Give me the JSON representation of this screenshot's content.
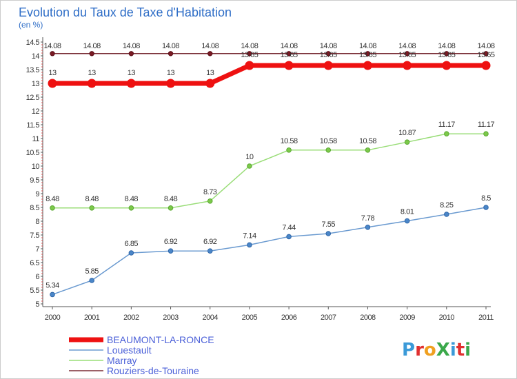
{
  "title": "Evolution du Taux de Taxe d'Habitation",
  "subtitle": "(en %)",
  "logo": {
    "text": "ProXiti",
    "colors": [
      "#3b9ad8",
      "#e03030",
      "#f0a020",
      "#3aa84a",
      "#3b9ad8",
      "#e03030",
      "#3aa84a"
    ]
  },
  "chart_data": {
    "type": "line",
    "title": "Evolution du Taux de Taxe d'Habitation",
    "ylabel": "(en %)",
    "xlabel": "",
    "ylim": [
      5,
      14.5
    ],
    "y_ticks": [
      "5",
      "5.5",
      "6",
      "6.5",
      "7",
      "7.5",
      "8",
      "8.5",
      "9",
      "9.5",
      "10",
      "10.5",
      "11",
      "11.5",
      "12",
      "12.5",
      "13",
      "13.5",
      "14",
      "14.5"
    ],
    "categories": [
      "2000",
      "2001",
      "2002",
      "2003",
      "2004",
      "2005",
      "2006",
      "2007",
      "2008",
      "2009",
      "2010",
      "2011"
    ],
    "grid": false,
    "legend_position": "bottom-left",
    "series": [
      {
        "name": "Rouziers-de-Touraine",
        "color": "#7a2d36",
        "values": [
          14.08,
          14.08,
          14.08,
          14.08,
          14.08,
          14.08,
          14.08,
          14.08,
          14.08,
          14.08,
          14.08,
          14.08
        ],
        "labels": [
          "14.08",
          "14.08",
          "14.08",
          "14.08",
          "14.08",
          "14.08",
          "14.08",
          "14.08",
          "14.08",
          "14.08",
          "14.08",
          "14.08"
        ]
      },
      {
        "name": "BEAUMONT-LA-RONCE",
        "color": "#ee1111",
        "values": [
          13,
          13,
          13,
          13,
          13,
          13.65,
          13.65,
          13.65,
          13.65,
          13.65,
          13.65,
          13.65
        ],
        "labels": [
          "13",
          "13",
          "13",
          "13",
          "13",
          "13.65",
          "13.65",
          "13.65",
          "13.65",
          "13.65",
          "13.65",
          "13.65"
        ]
      },
      {
        "name": "Marray",
        "color": "#99dd77",
        "values": [
          8.48,
          8.48,
          8.48,
          8.48,
          8.73,
          10,
          10.58,
          10.58,
          10.58,
          10.87,
          11.17,
          11.17
        ],
        "labels": [
          "8.48",
          "8.48",
          "8.48",
          "8.48",
          "8.73",
          "10",
          "10.58",
          "10.58",
          "10.58",
          "10.87",
          "11.17",
          "11.17"
        ]
      },
      {
        "name": "Louestault",
        "color": "#6a9ad0",
        "values": [
          5.34,
          5.85,
          6.85,
          6.92,
          6.92,
          7.14,
          7.44,
          7.55,
          7.78,
          8.01,
          8.25,
          8.5
        ],
        "labels": [
          "5.34",
          "5.85",
          "6.85",
          "6.92",
          "6.92",
          "7.14",
          "7.44",
          "7.55",
          "7.78",
          "8.01",
          "8.25",
          "8.5"
        ]
      }
    ],
    "legend": [
      "BEAUMONT-LA-RONCE",
      "Louestault",
      "Marray",
      "Rouziers-de-Touraine"
    ]
  }
}
